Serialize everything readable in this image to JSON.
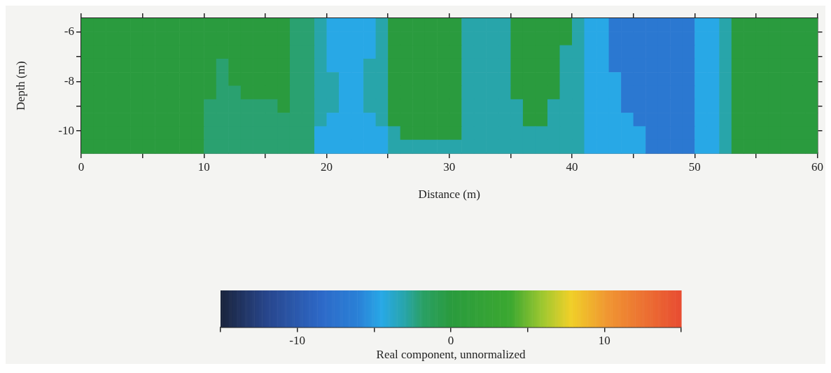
{
  "chart_data": {
    "type": "heatmap",
    "xlabel": "Distance (m)",
    "ylabel": "Depth (m)",
    "clabel": "Real component, unnormalized",
    "x": [
      0.5,
      1.5,
      2.5,
      3.5,
      4.5,
      5.5,
      6.5,
      7.5,
      8.5,
      9.5,
      10.5,
      11.5,
      12.5,
      13.5,
      14.5,
      15.5,
      16.5,
      17.5,
      18.5,
      19.5,
      20.5,
      21.5,
      22.5,
      23.5,
      24.5,
      25.5,
      26.5,
      27.5,
      28.5,
      29.5,
      30.5,
      31.5,
      32.5,
      33.5,
      34.5,
      35.5,
      36.5,
      37.5,
      38.5,
      39.5,
      40.5,
      41.5,
      42.5,
      43.5,
      44.5,
      45.5,
      46.5,
      47.5,
      48.5,
      49.5,
      50.5,
      51.5,
      52.5,
      53.5,
      54.5,
      55.5,
      56.5,
      57.5,
      58.5,
      59.5
    ],
    "xlim": [
      0,
      60
    ],
    "xticks": [
      0,
      {
        "value": 5,
        "label": null
      },
      10,
      {
        "value": 15,
        "label": null
      },
      20,
      {
        "value": 25,
        "label": null
      },
      30,
      {
        "value": 35,
        "label": null
      },
      40,
      {
        "value": 45,
        "label": null
      },
      50,
      {
        "value": 55,
        "label": null
      },
      60
    ],
    "ylim": [
      -10.9,
      -5.45
    ],
    "yticks": [
      -6,
      {
        "value": -7,
        "label": null
      },
      -8,
      {
        "value": -9,
        "label": null
      },
      -10
    ],
    "clim": [
      -15,
      15
    ],
    "cticks": [
      {
        "value": -15,
        "label": null
      },
      -10,
      {
        "value": -5,
        "label": null
      },
      0,
      {
        "value": 5,
        "label": null
      },
      10,
      {
        "value": 15,
        "label": null
      }
    ],
    "cells": [
      [
        0,
        0,
        0,
        0,
        0,
        0,
        0,
        0,
        0,
        0,
        0,
        0,
        0,
        0,
        0,
        0,
        0,
        -2,
        -2,
        -3,
        -4.5,
        -4.5,
        -4.5,
        -4.5,
        -3,
        0,
        0,
        0,
        0,
        0,
        0,
        -3,
        -3,
        -3,
        -3,
        0,
        0,
        0,
        0,
        0,
        -3,
        -4.5,
        -4.5,
        -7,
        -7,
        -7,
        -7,
        -7,
        -7,
        -7,
        -4.5,
        -4.5,
        -3,
        0,
        0,
        0,
        0,
        0,
        0,
        0
      ],
      [
        0,
        0,
        0,
        0,
        0,
        0,
        0,
        0,
        0,
        0,
        0,
        0,
        0,
        0,
        0,
        0,
        0,
        -2,
        -2,
        -3,
        -4.5,
        -4.5,
        -4.5,
        -4.5,
        -3,
        0,
        0,
        0,
        0,
        0,
        0,
        -3,
        -3,
        -3,
        -3,
        0,
        0,
        0,
        0,
        0,
        -3,
        -4.5,
        -4.5,
        -7,
        -7,
        -7,
        -7,
        -7,
        -7,
        -7,
        -4.5,
        -4.5,
        -3,
        0,
        0,
        0,
        0,
        0,
        0,
        0
      ],
      [
        0,
        0,
        0,
        0,
        0,
        0,
        0,
        0,
        0,
        0,
        0,
        0,
        0,
        0,
        0,
        0,
        0,
        -2,
        -2,
        -3,
        -4.5,
        -4.5,
        -4.5,
        -4.5,
        -3,
        0,
        0,
        0,
        0,
        0,
        0,
        -3,
        -3,
        -3,
        -3,
        0,
        0,
        0,
        0,
        -3,
        -3,
        -4.5,
        -4.5,
        -7,
        -7,
        -7,
        -7,
        -7,
        -7,
        -7,
        -4.5,
        -4.5,
        -3,
        0,
        0,
        0,
        0,
        0,
        0,
        0
      ],
      [
        0,
        0,
        0,
        0,
        0,
        0,
        0,
        0,
        0,
        0,
        0,
        -2,
        0,
        0,
        0,
        0,
        0,
        -2,
        -2,
        -3,
        -4.5,
        -4.5,
        -4.5,
        -3,
        -3,
        0,
        0,
        0,
        0,
        0,
        0,
        -3,
        -3,
        -3,
        -3,
        0,
        0,
        0,
        0,
        -3,
        -3,
        -4.5,
        -4.5,
        -7,
        -7,
        -7,
        -7,
        -7,
        -7,
        -7,
        -4.5,
        -4.5,
        -3,
        0,
        0,
        0,
        0,
        0,
        0,
        0
      ],
      [
        0,
        0,
        0,
        0,
        0,
        0,
        0,
        0,
        0,
        0,
        0,
        -2,
        0,
        0,
        0,
        0,
        0,
        -2,
        -2,
        -3,
        -3,
        -4.5,
        -4.5,
        -3,
        -3,
        0,
        0,
        0,
        0,
        0,
        0,
        -3,
        -3,
        -3,
        -3,
        0,
        0,
        0,
        0,
        -3,
        -3,
        -4.5,
        -4.5,
        -4.5,
        -7,
        -7,
        -7,
        -7,
        -7,
        -7,
        -4.5,
        -4.5,
        -3,
        0,
        0,
        0,
        0,
        0,
        0,
        0
      ],
      [
        0,
        0,
        0,
        0,
        0,
        0,
        0,
        0,
        0,
        0,
        0,
        -2,
        -2,
        0,
        0,
        0,
        0,
        -2,
        -2,
        -3,
        -3,
        -4.5,
        -4.5,
        -3,
        -3,
        0,
        0,
        0,
        0,
        0,
        0,
        -3,
        -3,
        -3,
        -3,
        0,
        0,
        0,
        0,
        -3,
        -3,
        -4.5,
        -4.5,
        -4.5,
        -7,
        -7,
        -7,
        -7,
        -7,
        -7,
        -4.5,
        -4.5,
        -3,
        0,
        0,
        0,
        0,
        0,
        0,
        0
      ],
      [
        0,
        0,
        0,
        0,
        0,
        0,
        0,
        0,
        0,
        0,
        -2,
        -2,
        -2,
        -2,
        -2,
        -2,
        0,
        -2,
        -2,
        -3,
        -3,
        -4.5,
        -4.5,
        -3,
        -3,
        0,
        0,
        0,
        0,
        0,
        0,
        -3,
        -3,
        -3,
        -3,
        -3,
        0,
        0,
        -3,
        -3,
        -3,
        -4.5,
        -4.5,
        -4.5,
        -7,
        -7,
        -7,
        -7,
        -7,
        -7,
        -4.5,
        -4.5,
        -3,
        0,
        0,
        0,
        0,
        0,
        0,
        0
      ],
      [
        0,
        0,
        0,
        0,
        0,
        0,
        0,
        0,
        0,
        0,
        -2,
        -2,
        -2,
        -2,
        -2,
        -2,
        -2,
        -2,
        -2,
        -3,
        -4.5,
        -4.5,
        -4.5,
        -4.5,
        -3,
        0,
        0,
        0,
        0,
        0,
        0,
        -3,
        -3,
        -3,
        -3,
        -3,
        0,
        0,
        -3,
        -3,
        -3,
        -4.5,
        -4.5,
        -4.5,
        -4.5,
        -7,
        -7,
        -7,
        -7,
        -7,
        -4.5,
        -4.5,
        -3,
        0,
        0,
        0,
        0,
        0,
        0,
        0
      ],
      [
        0,
        0,
        0,
        0,
        0,
        0,
        0,
        0,
        0,
        0,
        -2,
        -2,
        -2,
        -2,
        -2,
        -2,
        -2,
        -2,
        -2,
        -4.5,
        -4.5,
        -4.5,
        -4.5,
        -4.5,
        -4.5,
        -3,
        0,
        0,
        0,
        0,
        0,
        -3,
        -3,
        -3,
        -3,
        -3,
        -3,
        -3,
        -3,
        -3,
        -3,
        -4.5,
        -4.5,
        -4.5,
        -4.5,
        -4.5,
        -7,
        -7,
        -7,
        -7,
        -4.5,
        -4.5,
        -3,
        0,
        0,
        0,
        0,
        0,
        0,
        0
      ],
      [
        0,
        0,
        0,
        0,
        0,
        0,
        0,
        0,
        0,
        0,
        -2,
        -2,
        -2,
        -2,
        -2,
        -2,
        -2,
        -2,
        -2,
        -4.5,
        -4.5,
        -4.5,
        -4.5,
        -4.5,
        -4.5,
        -3,
        -3,
        -3,
        -3,
        -3,
        -3,
        -3,
        -3,
        -3,
        -3,
        -3,
        -3,
        -3,
        -3,
        -3,
        -3,
        -4.5,
        -4.5,
        -4.5,
        -4.5,
        -4.5,
        -7,
        -7,
        -7,
        -7,
        -4.5,
        -4.5,
        -3,
        0,
        0,
        0,
        0,
        0,
        0,
        0
      ]
    ]
  }
}
